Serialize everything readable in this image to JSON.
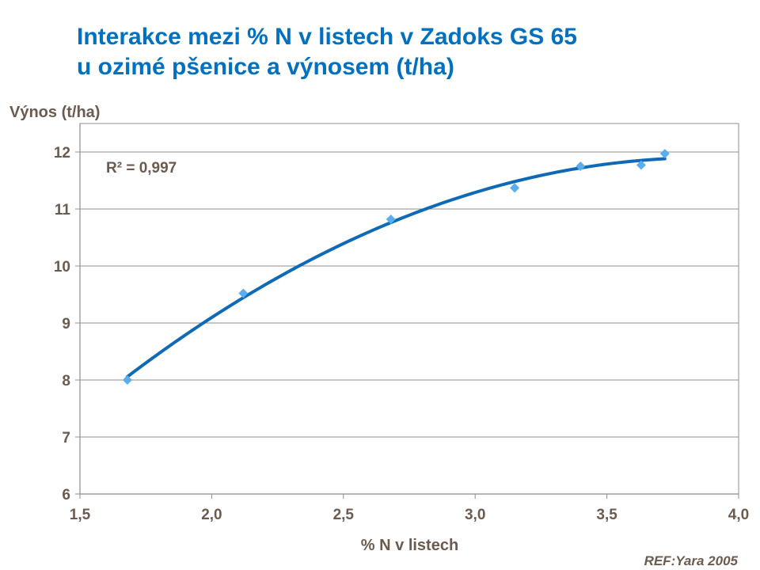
{
  "chart_data": {
    "type": "scatter",
    "title_lines": [
      "Interakce mezi % N v listech v Zadoks GS 65",
      "u ozimé pšenice a výnosem (t/ha)"
    ],
    "xlabel": "% N v listech",
    "ylabel": "Výnos (t/ha)",
    "xlim": [
      1.5,
      4.0
    ],
    "ylim": [
      6,
      12.5
    ],
    "x_ticks": [
      1.5,
      2.0,
      2.5,
      3.0,
      3.5,
      4.0
    ],
    "x_tick_labels": [
      "1,5",
      "2,0",
      "2,5",
      "3,0",
      "3,5",
      "4,0"
    ],
    "y_ticks": [
      6,
      7,
      8,
      9,
      10,
      11,
      12
    ],
    "y_tick_labels": [
      "6",
      "7",
      "8",
      "9",
      "10",
      "11",
      "12"
    ],
    "grid": "horizontal",
    "series": [
      {
        "marker": "diamond",
        "color": "#5aaef0",
        "points": [
          {
            "x": 1.68,
            "y": 8.0
          },
          {
            "x": 2.12,
            "y": 9.52
          },
          {
            "x": 2.68,
            "y": 10.82
          },
          {
            "x": 3.15,
            "y": 11.37
          },
          {
            "x": 3.4,
            "y": 11.75
          },
          {
            "x": 3.63,
            "y": 11.77
          },
          {
            "x": 3.72,
            "y": 11.97
          }
        ]
      }
    ],
    "trendline": {
      "type": "polynomial",
      "color": "#0e6ab6",
      "x_range": [
        1.68,
        3.72
      ],
      "points": [
        {
          "x": 1.68,
          "y": 8.07
        },
        {
          "x": 2.12,
          "y": 9.42
        },
        {
          "x": 2.68,
          "y": 10.77
        },
        {
          "x": 3.15,
          "y": 11.48
        },
        {
          "x": 3.4,
          "y": 11.74
        },
        {
          "x": 3.63,
          "y": 11.85
        },
        {
          "x": 3.72,
          "y": 11.87
        }
      ]
    },
    "annotation": "R² = 0,997"
  },
  "reference": "REF:Yara 2005"
}
